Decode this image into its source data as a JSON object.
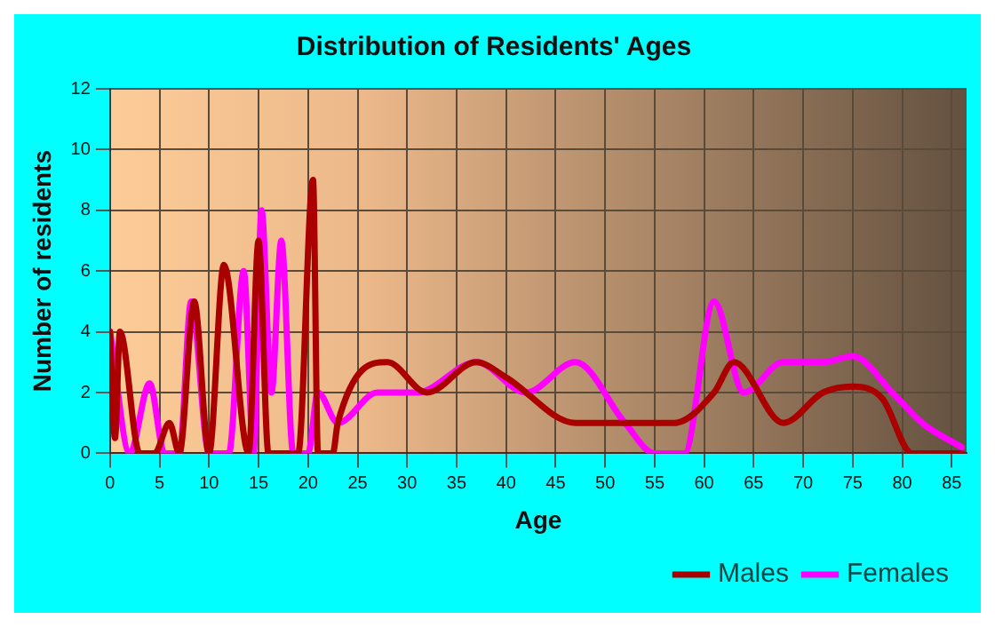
{
  "chart_data": {
    "type": "line",
    "title": "Distribution of Residents' Ages",
    "xlabel": "Age",
    "ylabel": "Number of residents",
    "xlim": [
      0,
      86.5
    ],
    "xticks": [
      0,
      5,
      10,
      15,
      20,
      25,
      30,
      35,
      40,
      45,
      50,
      55,
      60,
      65,
      70,
      75,
      80,
      85
    ],
    "ylim": [
      0,
      12
    ],
    "yticks": [
      0,
      2,
      4,
      6,
      8,
      10,
      12
    ],
    "grid": true,
    "legend": "bottom right",
    "marker": "none",
    "line_style": "solid",
    "series": [
      {
        "name": "Males",
        "color": "#aa0000",
        "x": [
          0,
          0.5,
          1,
          3,
          4.5,
          6,
          7,
          8.5,
          10,
          11.5,
          14,
          15,
          16,
          19,
          20.5,
          21,
          22.5,
          23,
          28,
          32,
          37,
          40,
          47,
          52,
          57,
          61,
          63,
          68,
          72,
          75,
          78,
          81,
          86
        ],
        "values": [
          4,
          0.5,
          4,
          0,
          0,
          1,
          0,
          5,
          0,
          6.2,
          0,
          7,
          0,
          0,
          9,
          0,
          0,
          1,
          3,
          2,
          3,
          2.5,
          1,
          1,
          1,
          2,
          3,
          1,
          2,
          2.2,
          1.8,
          0,
          0
        ]
      },
      {
        "name": "Females",
        "color": "#ff00ff",
        "x": [
          0,
          2,
          4,
          5.5,
          7,
          8.2,
          10,
          12,
          13.5,
          14.5,
          15.3,
          16.3,
          17.3,
          18.5,
          20,
          21,
          23,
          27,
          31,
          37,
          42,
          47,
          52,
          55,
          58,
          61,
          64,
          68,
          72,
          75,
          79,
          82,
          86
        ],
        "values": [
          4,
          0,
          2.3,
          0,
          0,
          5,
          0,
          0,
          6,
          0,
          8,
          2,
          7,
          0,
          0,
          2,
          1,
          2,
          2,
          3,
          2,
          3,
          1,
          0,
          0,
          5,
          2,
          3,
          3,
          3.2,
          2,
          1,
          0.2
        ]
      }
    ]
  }
}
